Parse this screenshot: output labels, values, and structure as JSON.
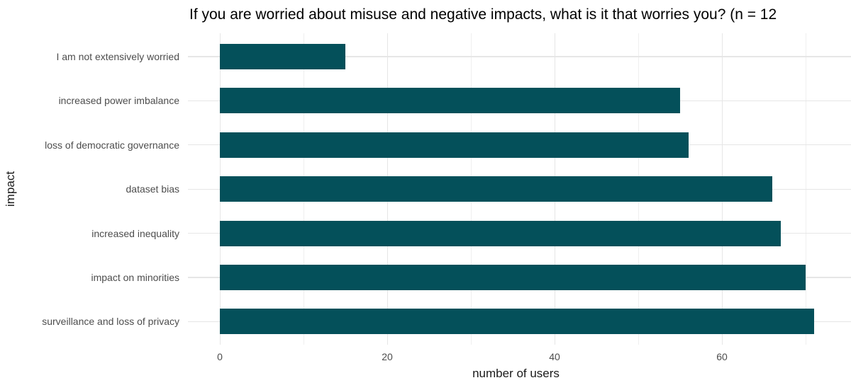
{
  "chart": {
    "title_display": "If you are worried about misuse and negative impacts, what is it that worries you? (n = 12"
  },
  "chart_data": {
    "type": "bar",
    "orientation": "horizontal",
    "title": "If you are worried about misuse and negative impacts, what is it that worries you? (n = 12",
    "xlabel": "number of users",
    "ylabel": "impact",
    "categories": [
      "I am not extensively worried",
      "increased power imbalance",
      "loss of democratic governance",
      "dataset bias",
      "increased inequality",
      "impact on minorities",
      "surveillance and loss of privacy"
    ],
    "values": [
      15,
      55,
      56,
      66,
      67,
      70,
      71
    ],
    "xlim": [
      0,
      75
    ],
    "x_major_ticks": [
      0,
      20,
      40,
      60
    ],
    "x_minor_ticks": [
      10,
      30,
      50,
      70
    ],
    "grid": "vertical major+minor, horizontal major at category centers",
    "legend": "none",
    "colors": {
      "bar": "#04505a",
      "grid_major": "#e6e6e6",
      "grid_minor": "#efefef",
      "axis_text": "#4d4d4d",
      "axis_title": "#1a1a1a",
      "title_text": "#000000",
      "background": "#ffffff"
    }
  }
}
